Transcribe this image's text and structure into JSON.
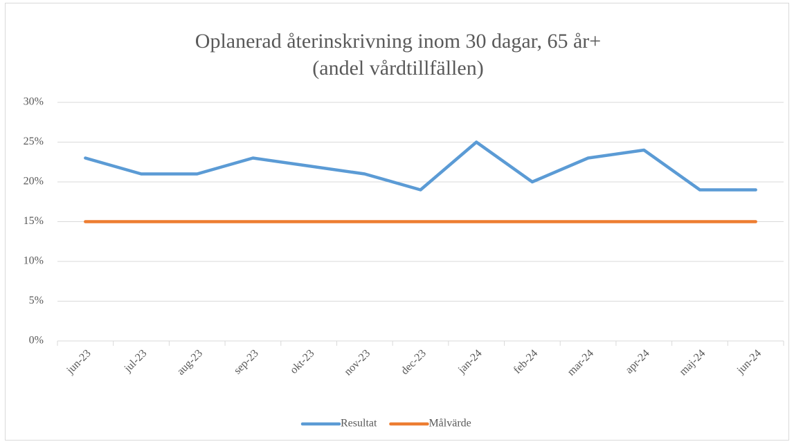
{
  "chart_data": {
    "type": "line",
    "title": "Oplanerad återinskrivning inom 30 dagar, 65 år+",
    "subtitle": "(andel vårdtillfällen)",
    "categories": [
      "jun-23",
      "jul-23",
      "aug-23",
      "sep-23",
      "okt-23",
      "nov-23",
      "dec-23",
      "jan-24",
      "feb-24",
      "mar-24",
      "apr-24",
      "maj-24",
      "jun-24"
    ],
    "series": [
      {
        "name": "Resultat",
        "color": "#5b9bd5",
        "values": [
          23,
          21,
          21,
          23,
          22,
          21,
          19,
          25,
          20,
          23,
          24,
          19,
          19
        ]
      },
      {
        "name": "Målvärde",
        "color": "#ed7d31",
        "values": [
          15,
          15,
          15,
          15,
          15,
          15,
          15,
          15,
          15,
          15,
          15,
          15,
          15
        ]
      }
    ],
    "ylim": [
      0,
      30
    ],
    "yticks": [
      {
        "value": 0,
        "label": "0%"
      },
      {
        "value": 5,
        "label": "5%"
      },
      {
        "value": 10,
        "label": "10%"
      },
      {
        "value": 15,
        "label": "15%"
      },
      {
        "value": 20,
        "label": "20%"
      },
      {
        "value": 25,
        "label": "25%"
      },
      {
        "value": 30,
        "label": "30%"
      }
    ],
    "grid": true,
    "legend": "bottom"
  }
}
